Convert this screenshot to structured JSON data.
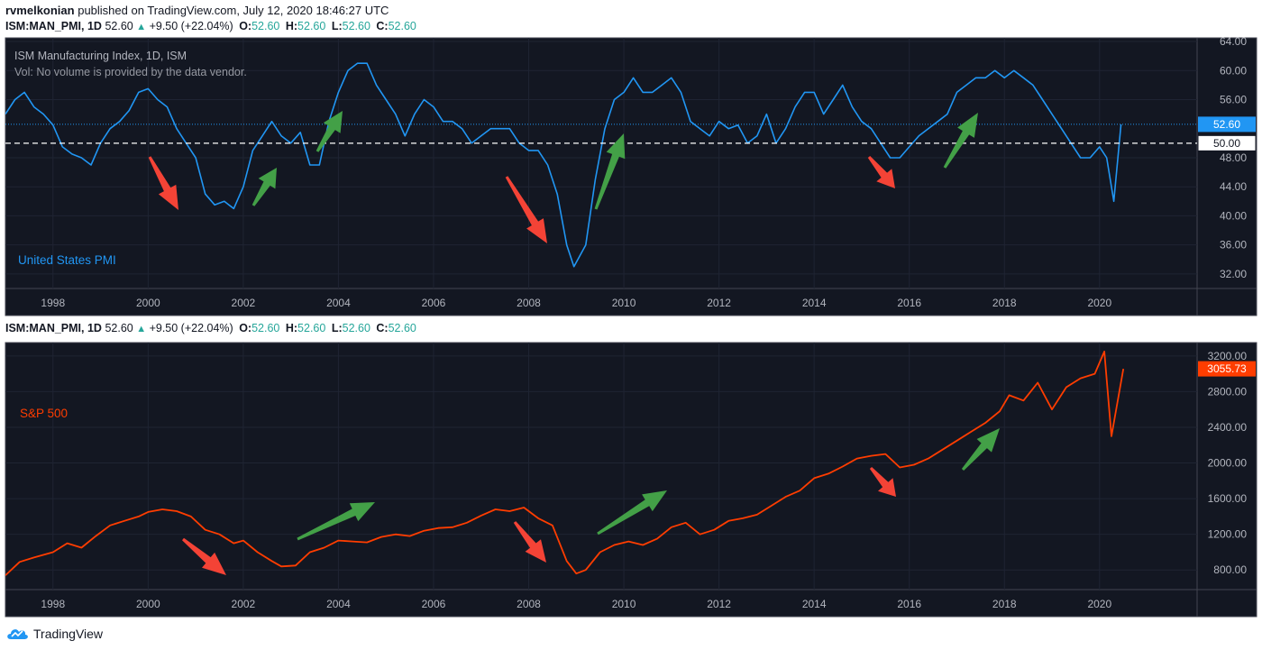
{
  "header": {
    "author": "rvmelkonian",
    "published": "published on TradingView.com, July 12, 2020 18:46:27 UTC"
  },
  "legend": {
    "symbol": "ISM:MAN_PMI, 1D",
    "last": "52.60",
    "change": "+9.50 (+22.04%)",
    "o_label": "O:",
    "o": "52.60",
    "h_label": "H:",
    "h": "52.60",
    "l_label": "L:",
    "l": "52.60",
    "c_label": "C:",
    "c": "52.60"
  },
  "top_pane": {
    "title": "ISM Manufacturing Index, 1D, ISM",
    "vol_note": "Vol: No volume is provided by the data vendor.",
    "series_label": "United States PMI",
    "last_price_tag": "52.60",
    "ref_line_tag": "50.00",
    "y_ticks": [
      "64.00",
      "60.00",
      "56.00",
      "52.60",
      "50.00",
      "48.00",
      "44.00",
      "40.00",
      "36.00",
      "32.00"
    ]
  },
  "bottom_pane": {
    "series_label": "S&P 500",
    "last_price_tag": "3055.73",
    "y_ticks": [
      "3200.00",
      "2800.00",
      "2400.00",
      "2000.00",
      "1600.00",
      "1200.00",
      "800.00"
    ]
  },
  "x_ticks": [
    "1998",
    "2000",
    "2002",
    "2004",
    "2006",
    "2008",
    "2010",
    "2012",
    "2014",
    "2016",
    "2018",
    "2020"
  ],
  "footer": {
    "brand": "TradingView"
  },
  "colors": {
    "background": "#131722",
    "pmi_line": "#2196f3",
    "spx_line": "#ff3d00",
    "up_arrow": "#43a047",
    "down_arrow": "#f44336",
    "axis_text": "#b2b5be",
    "up_text": "#26a69a"
  },
  "chart_data": [
    {
      "type": "line",
      "title": "ISM Manufacturing Index, 1D, ISM",
      "series": [
        {
          "name": "United States PMI",
          "x": [
            1997.0,
            1997.2,
            1997.4,
            1997.6,
            1997.8,
            1998.0,
            1998.2,
            1998.4,
            1998.6,
            1998.8,
            1999.0,
            1999.2,
            1999.4,
            1999.6,
            1999.8,
            2000.0,
            2000.2,
            2000.4,
            2000.6,
            2000.8,
            2001.0,
            2001.2,
            2001.4,
            2001.6,
            2001.8,
            2002.0,
            2002.2,
            2002.4,
            2002.6,
            2002.8,
            2003.0,
            2003.2,
            2003.4,
            2003.6,
            2003.8,
            2004.0,
            2004.2,
            2004.4,
            2004.6,
            2004.8,
            2005.0,
            2005.2,
            2005.4,
            2005.6,
            2005.8,
            2006.0,
            2006.2,
            2006.4,
            2006.6,
            2006.8,
            2007.0,
            2007.2,
            2007.4,
            2007.6,
            2007.8,
            2008.0,
            2008.2,
            2008.4,
            2008.6,
            2008.8,
            2008.95,
            2009.2,
            2009.4,
            2009.6,
            2009.8,
            2010.0,
            2010.2,
            2010.4,
            2010.6,
            2010.8,
            2011.0,
            2011.2,
            2011.4,
            2011.6,
            2011.8,
            2012.0,
            2012.2,
            2012.4,
            2012.6,
            2012.8,
            2013.0,
            2013.2,
            2013.4,
            2013.6,
            2013.8,
            2014.0,
            2014.2,
            2014.4,
            2014.6,
            2014.8,
            2015.0,
            2015.2,
            2015.4,
            2015.6,
            2015.8,
            2016.0,
            2016.2,
            2016.4,
            2016.6,
            2016.8,
            2017.0,
            2017.2,
            2017.4,
            2017.6,
            2017.8,
            2018.0,
            2018.2,
            2018.4,
            2018.6,
            2018.8,
            2019.0,
            2019.2,
            2019.4,
            2019.6,
            2019.8,
            2020.0,
            2020.15,
            2020.3,
            2020.45
          ],
          "y": [
            54,
            56,
            57,
            55,
            54,
            52.5,
            49.5,
            48.5,
            48,
            47,
            50,
            52,
            53,
            54.5,
            57,
            57.5,
            56,
            55,
            52,
            50,
            48,
            43,
            41.5,
            42,
            41,
            44,
            49,
            51,
            53,
            51,
            50,
            51.5,
            47,
            47,
            53,
            57,
            60,
            61,
            61,
            58,
            56,
            54,
            51,
            54,
            56,
            55,
            53,
            53,
            52,
            50,
            51,
            52,
            52,
            52,
            50,
            49,
            49,
            47,
            43,
            36,
            33,
            36,
            45,
            52,
            56,
            57,
            59,
            57,
            57,
            58,
            59,
            57,
            53,
            52,
            51,
            53,
            52,
            52.5,
            50,
            51,
            54,
            50,
            52,
            55,
            57,
            57,
            54,
            56,
            58,
            55,
            53,
            52,
            50,
            48,
            48,
            49.5,
            51,
            52,
            53,
            54,
            57,
            58,
            59,
            59,
            60,
            59,
            60,
            59,
            58,
            56,
            54,
            52,
            50,
            48,
            48,
            49.5,
            48,
            42,
            52.6
          ]
        }
      ],
      "ylim": [
        30,
        64.5
      ]
    },
    {
      "type": "line",
      "series": [
        {
          "name": "S&P 500",
          "x": [
            1997.0,
            1997.3,
            1997.6,
            1998.0,
            1998.3,
            1998.6,
            1998.9,
            1999.2,
            1999.5,
            1999.8,
            2000.0,
            2000.3,
            2000.6,
            2000.9,
            2001.2,
            2001.5,
            2001.8,
            2002.0,
            2002.3,
            2002.6,
            2002.8,
            2003.1,
            2003.4,
            2003.7,
            2004.0,
            2004.3,
            2004.6,
            2004.9,
            2005.2,
            2005.5,
            2005.8,
            2006.1,
            2006.4,
            2006.7,
            2007.0,
            2007.3,
            2007.6,
            2007.9,
            2008.2,
            2008.5,
            2008.8,
            2009.0,
            2009.2,
            2009.5,
            2009.8,
            2010.1,
            2010.4,
            2010.7,
            2011.0,
            2011.3,
            2011.6,
            2011.9,
            2012.2,
            2012.5,
            2012.8,
            2013.1,
            2013.4,
            2013.7,
            2014.0,
            2014.3,
            2014.6,
            2014.9,
            2015.2,
            2015.5,
            2015.8,
            2016.1,
            2016.4,
            2016.7,
            2017.0,
            2017.3,
            2017.6,
            2017.9,
            2018.1,
            2018.4,
            2018.7,
            2019.0,
            2019.3,
            2019.6,
            2019.9,
            2020.1,
            2020.25,
            2020.5
          ],
          "y": [
            740,
            890,
            940,
            1000,
            1100,
            1050,
            1180,
            1300,
            1350,
            1400,
            1450,
            1480,
            1460,
            1400,
            1250,
            1200,
            1100,
            1130,
            1000,
            900,
            840,
            850,
            1000,
            1050,
            1130,
            1120,
            1110,
            1170,
            1200,
            1180,
            1240,
            1270,
            1280,
            1330,
            1410,
            1480,
            1460,
            1500,
            1380,
            1300,
            900,
            760,
            800,
            1000,
            1080,
            1120,
            1080,
            1150,
            1280,
            1330,
            1200,
            1250,
            1350,
            1380,
            1420,
            1520,
            1620,
            1690,
            1830,
            1880,
            1960,
            2050,
            2080,
            2100,
            1950,
            1980,
            2050,
            2150,
            2250,
            2350,
            2450,
            2580,
            2760,
            2700,
            2900,
            2600,
            2850,
            2950,
            3000,
            3250,
            2300,
            3055.73
          ]
        }
      ],
      "ylim": [
        580,
        3350
      ]
    }
  ]
}
